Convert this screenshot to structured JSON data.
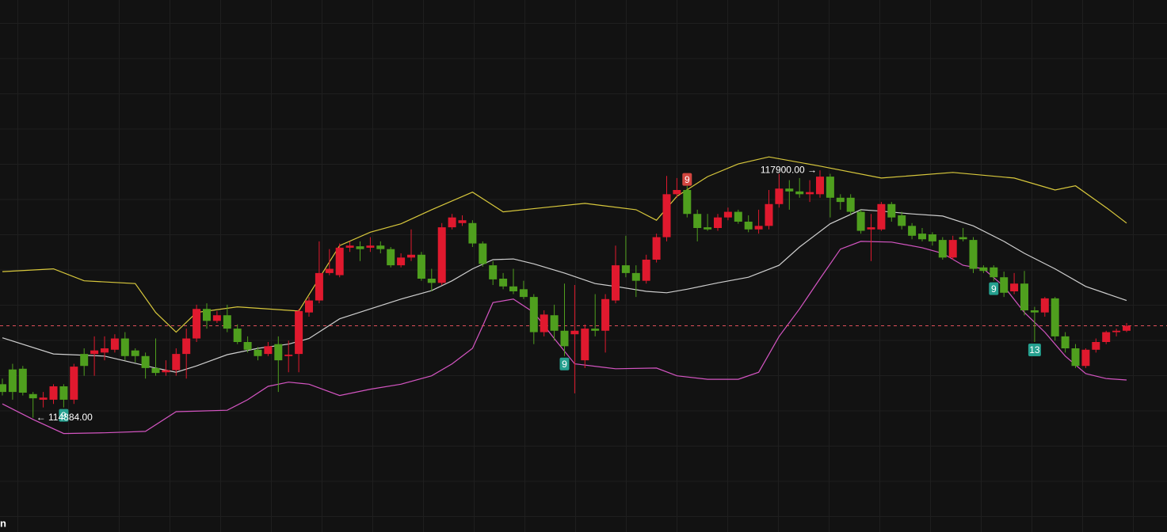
{
  "chart_data": {
    "type": "candlestick",
    "open": [
      114860,
      115070,
      115080,
      114720,
      114640,
      114640,
      114830,
      114640,
      115290,
      115290,
      115310,
      115350,
      115510,
      115340,
      115260,
      115090,
      115030,
      115060,
      115290,
      115510,
      115930,
      115760,
      115840,
      115650,
      115460,
      115350,
      115290,
      115430,
      115260,
      115290,
      115880,
      116050,
      116440,
      116410,
      116800,
      116820,
      116800,
      116830,
      116780,
      116550,
      116660,
      116700,
      116360,
      116300,
      117090,
      117150,
      117150,
      116860,
      116550,
      116360,
      116250,
      116210,
      116100,
      115600,
      115840,
      115620,
      115570,
      115200,
      115650,
      115620,
      116050,
      116550,
      116440,
      116330,
      116630,
      116950,
      117560,
      117620,
      117280,
      117090,
      117080,
      117230,
      117310,
      117170,
      117060,
      117110,
      117420,
      117640,
      117600,
      117560,
      117560,
      117810,
      117510,
      117510,
      117310,
      117060,
      117060,
      117420,
      117260,
      117110,
      117000,
      116990,
      116910,
      116660,
      116950,
      116910,
      116520,
      116520,
      116380,
      116180,
      116290,
      115910,
      115880,
      116080,
      115540,
      115370,
      115120,
      115350,
      115460,
      115600,
      115620
    ],
    "high": [
      114940,
      115150,
      115120,
      114750,
      114750,
      114860,
      114860,
      115150,
      115370,
      115540,
      115540,
      115570,
      115600,
      115370,
      115310,
      115510,
      115200,
      115370,
      115650,
      115990,
      116010,
      115900,
      115990,
      115710,
      115540,
      115390,
      115460,
      115540,
      115480,
      115930,
      116100,
      116890,
      116780,
      116860,
      116890,
      116890,
      116950,
      116890,
      116810,
      116720,
      117060,
      116740,
      116500,
      117150,
      117280,
      117260,
      117190,
      116890,
      116610,
      116440,
      116500,
      116330,
      116140,
      115910,
      115990,
      116290,
      116270,
      115710,
      116140,
      116140,
      116830,
      116970,
      116550,
      116700,
      117000,
      117820,
      117790,
      117680,
      117340,
      117280,
      117280,
      117370,
      117340,
      117260,
      117340,
      117620,
      117850,
      117760,
      117790,
      117760,
      117900,
      117850,
      117560,
      117560,
      117340,
      117280,
      117450,
      117450,
      117310,
      117150,
      117080,
      117020,
      116950,
      116970,
      117080,
      116950,
      116550,
      116550,
      116460,
      116440,
      116470,
      115960,
      116100,
      116100,
      115600,
      115430,
      115370,
      115510,
      115620,
      115650,
      115730
    ],
    "low": [
      114700,
      114640,
      114700,
      114384,
      114530,
      114580,
      114530,
      114580,
      114980,
      114980,
      115200,
      115310,
      115200,
      115170,
      114940,
      114980,
      114980,
      114980,
      114940,
      115460,
      115650,
      115730,
      115600,
      115430,
      115310,
      115200,
      115260,
      114750,
      115030,
      115030,
      115820,
      116010,
      116410,
      116380,
      116740,
      116610,
      116740,
      116720,
      116520,
      116520,
      116610,
      116330,
      116180,
      116270,
      117060,
      117110,
      116810,
      116530,
      116270,
      116210,
      116140,
      116070,
      115430,
      115540,
      115480,
      115260,
      114730,
      115090,
      115540,
      115310,
      116010,
      116380,
      116100,
      116290,
      116590,
      116890,
      117510,
      117230,
      116890,
      117040,
      117040,
      117190,
      117140,
      117020,
      117000,
      117060,
      117370,
      117340,
      117510,
      117450,
      117510,
      117230,
      117340,
      117260,
      117000,
      116610,
      117040,
      117170,
      117060,
      116920,
      116890,
      116830,
      116630,
      116630,
      116890,
      116440,
      116440,
      116330,
      116100,
      116140,
      115840,
      115460,
      115820,
      115480,
      115310,
      115090,
      115090,
      115310,
      115430,
      115540,
      115600
    ],
    "close": [
      114750,
      114750,
      114740,
      114660,
      114670,
      114830,
      114640,
      115110,
      115120,
      115340,
      115370,
      115510,
      115260,
      115260,
      115090,
      115020,
      115060,
      115290,
      115510,
      115930,
      115760,
      115840,
      115650,
      115460,
      115350,
      115260,
      115400,
      115200,
      115280,
      115900,
      116050,
      116440,
      116500,
      116800,
      116830,
      116780,
      116830,
      116780,
      116550,
      116660,
      116700,
      116360,
      116300,
      117090,
      117230,
      117190,
      116860,
      116570,
      116350,
      116250,
      116180,
      116100,
      115600,
      115850,
      115620,
      115400,
      115620,
      115650,
      115620,
      116070,
      116550,
      116440,
      116330,
      116630,
      116950,
      117560,
      117620,
      117280,
      117080,
      117060,
      117230,
      117310,
      117170,
      117060,
      117110,
      117420,
      117640,
      117600,
      117560,
      117590,
      117810,
      117510,
      117450,
      117310,
      117040,
      117090,
      117420,
      117230,
      117110,
      116970,
      116920,
      116890,
      116660,
      116910,
      116920,
      116500,
      116470,
      116380,
      116160,
      116290,
      115910,
      115880,
      116080,
      115540,
      115370,
      115120,
      115350,
      115460,
      115600,
      115620,
      115690
    ],
    "up_color": "#e0192e",
    "down_color": "#4f9f1e",
    "ylim": [
      112760,
      120320
    ],
    "grid": true,
    "last_price_line": true,
    "last_price_color": "#e0505a",
    "bands": [
      {
        "color": "#d8c83c",
        "x": [
          0,
          5,
          8,
          13,
          15,
          17,
          19,
          23,
          29,
          33,
          36,
          39,
          42,
          46,
          49,
          53,
          57,
          62,
          64,
          66,
          69,
          72,
          75,
          80,
          86,
          93,
          99,
          103,
          105,
          108,
          110
        ],
        "values": [
          116460,
          116500,
          116330,
          116290,
          115880,
          115600,
          115880,
          115960,
          115900,
          116830,
          117020,
          117140,
          117340,
          117590,
          117310,
          117370,
          117430,
          117340,
          117190,
          117530,
          117810,
          117990,
          118090,
          117960,
          117790,
          117870,
          117790,
          117620,
          117680,
          117370,
          117150
        ]
      },
      {
        "color": "#cfcfcf",
        "x": [
          0,
          5,
          10,
          15,
          17,
          19,
          22,
          25,
          28,
          30,
          33,
          36,
          39,
          42,
          44,
          46,
          48,
          50,
          52,
          55,
          58,
          60,
          63,
          65,
          67,
          70,
          73,
          76,
          78,
          81,
          84,
          86,
          89,
          92,
          95,
          98,
          100,
          103,
          106,
          110
        ],
        "values": [
          115520,
          115290,
          115260,
          115090,
          115030,
          115120,
          115280,
          115370,
          115430,
          115510,
          115790,
          115930,
          116070,
          116190,
          116330,
          116500,
          116630,
          116640,
          116570,
          116440,
          116290,
          116250,
          116180,
          116160,
          116210,
          116300,
          116380,
          116550,
          116810,
          117140,
          117340,
          117320,
          117280,
          117250,
          117110,
          116890,
          116720,
          116500,
          116250,
          116050
        ]
      },
      {
        "color": "#d455c2",
        "x": [
          0,
          3,
          6,
          10,
          14,
          17,
          22,
          24,
          26,
          28,
          30,
          33,
          36,
          39,
          42,
          44,
          46,
          47,
          48,
          50,
          52,
          54,
          56,
          60,
          64,
          66,
          69,
          72,
          74,
          76,
          78,
          80,
          82,
          84,
          87,
          90,
          92,
          94,
          96,
          98,
          100,
          102,
          104,
          106,
          108,
          110
        ],
        "values": [
          114580,
          114360,
          114160,
          114170,
          114190,
          114470,
          114490,
          114640,
          114830,
          114890,
          114860,
          114700,
          114790,
          114860,
          114980,
          115150,
          115370,
          115690,
          116020,
          116070,
          115880,
          115510,
          115150,
          115080,
          115090,
          114980,
          114930,
          114930,
          115030,
          115540,
          115930,
          116360,
          116780,
          116890,
          116880,
          116800,
          116720,
          116550,
          116500,
          116250,
          115880,
          115600,
          115260,
          115010,
          114940,
          114920
        ]
      }
    ],
    "extremes": [
      {
        "index": 80,
        "value": 117900,
        "label": "117900.00 →"
      },
      {
        "index": 3,
        "value": 114384,
        "label": "← 114384.00"
      }
    ],
    "signals": [
      {
        "index": 6,
        "count": 9,
        "position": "below",
        "color": "#25a08f"
      },
      {
        "index": 55,
        "count": 9,
        "position": "below",
        "color": "#25a08f"
      },
      {
        "index": 67,
        "count": 9,
        "position": "above",
        "color": "#d2463f"
      },
      {
        "index": 97,
        "count": 9,
        "position": "below",
        "color": "#25a08f"
      },
      {
        "index": 101,
        "count": 13,
        "position": "below",
        "color": "#25a08f"
      }
    ],
    "corner_text": "n"
  }
}
